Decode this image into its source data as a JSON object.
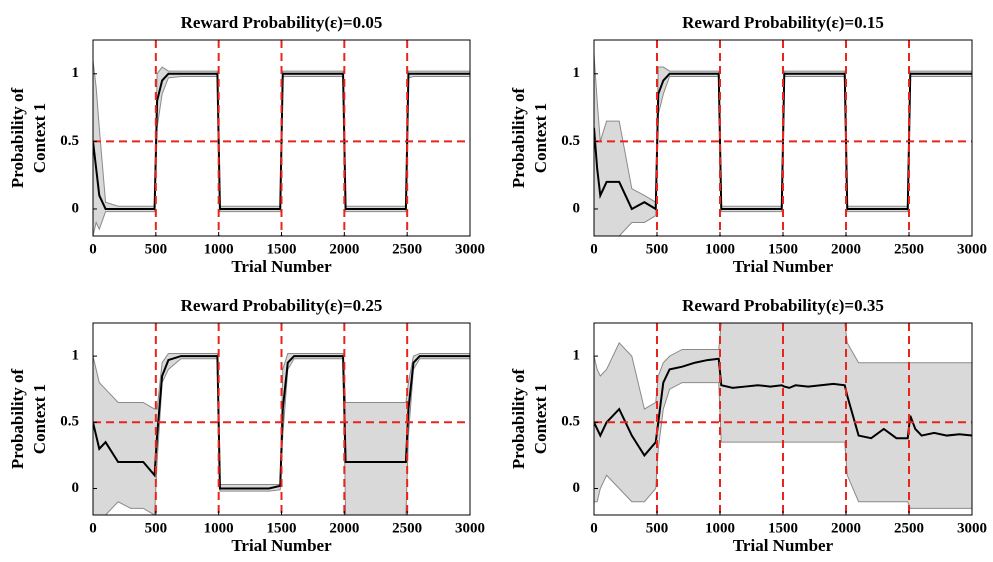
{
  "chart_data": [
    {
      "type": "line",
      "title": "Reward Probability(ε)=0.05",
      "xlabel": "Trial Number",
      "ylabel": [
        "Probability of",
        "Context 1"
      ],
      "x": [
        0,
        25,
        50,
        100,
        200,
        300,
        400,
        490,
        510,
        550,
        600,
        700,
        800,
        900,
        990,
        1010,
        1100,
        1200,
        1300,
        1400,
        1490,
        1510,
        1550,
        1600,
        1700,
        1800,
        1900,
        1990,
        2010,
        2100,
        2200,
        2300,
        2400,
        2490,
        2510,
        2550,
        2600,
        2700,
        2800,
        2900,
        3000
      ],
      "series": [
        {
          "color": "#000000",
          "values": [
            0.5,
            0.3,
            0.1,
            0,
            0,
            0,
            0,
            0,
            0.8,
            0.95,
            1,
            1,
            1,
            1,
            1,
            0,
            0,
            0,
            0,
            0,
            0,
            1,
            1,
            1,
            1,
            1,
            1,
            1,
            0,
            0,
            0,
            0,
            0,
            0,
            1,
            1,
            1,
            1,
            1,
            1,
            1
          ]
        }
      ],
      "band": {
        "color": "#d9d9d9",
        "edge_color": "#8a8a8a",
        "lower": [
          -0.2,
          -0.1,
          -0.15,
          -0.02,
          -0.02,
          -0.02,
          -0.02,
          -0.02,
          0.6,
          0.85,
          0.97,
          0.98,
          0.98,
          0.98,
          0.98,
          -0.02,
          -0.02,
          -0.02,
          -0.02,
          -0.02,
          -0.02,
          0.98,
          0.98,
          0.98,
          0.98,
          0.98,
          0.98,
          0.98,
          -0.02,
          -0.02,
          -0.02,
          -0.02,
          -0.02,
          -0.02,
          0.97,
          0.98,
          0.98,
          0.98,
          0.98,
          0.98,
          0.98
        ],
        "upper": [
          1.1,
          0.9,
          0.6,
          0.05,
          0.02,
          0.02,
          0.02,
          0.02,
          1.0,
          1.05,
          1.02,
          1.02,
          1.02,
          1.02,
          1.02,
          0.02,
          0.02,
          0.02,
          0.02,
          0.02,
          0.02,
          1.02,
          1.02,
          1.02,
          1.02,
          1.02,
          1.02,
          1.02,
          0.02,
          0.02,
          0.02,
          0.02,
          0.02,
          0.02,
          1.02,
          1.02,
          1.02,
          1.02,
          1.02,
          1.02,
          1.02
        ]
      },
      "xlim": [
        0,
        3000
      ],
      "ylim": [
        -0.2,
        1.25
      ],
      "xticks": [
        0,
        500,
        1000,
        1500,
        2000,
        2500,
        3000
      ],
      "yticks": [
        0,
        0.5,
        1
      ],
      "vlines": [
        500,
        1000,
        1500,
        2000,
        2500
      ],
      "hlines": [
        0.5
      ],
      "ref_color": "#e8241c"
    },
    {
      "type": "line",
      "title": "Reward Probability(ε)=0.15",
      "xlabel": "Trial Number",
      "ylabel": [
        "Probability of",
        "Context 1"
      ],
      "x": [
        0,
        25,
        50,
        100,
        200,
        300,
        400,
        490,
        510,
        550,
        600,
        700,
        800,
        900,
        990,
        1010,
        1100,
        1200,
        1300,
        1400,
        1490,
        1510,
        1550,
        1600,
        1700,
        1800,
        1900,
        1990,
        2010,
        2100,
        2200,
        2300,
        2400,
        2490,
        2510,
        2550,
        2600,
        2700,
        2800,
        2900,
        3000
      ],
      "series": [
        {
          "color": "#000000",
          "values": [
            0.6,
            0.3,
            0.1,
            0.2,
            0.2,
            0,
            0.05,
            0,
            0.85,
            0.95,
            1,
            1,
            1,
            1,
            1,
            0,
            0,
            0,
            0,
            0,
            0,
            1,
            1,
            1,
            1,
            1,
            1,
            1,
            0,
            0,
            0,
            0,
            0,
            0,
            1,
            1,
            1,
            1,
            1,
            1,
            1
          ]
        }
      ],
      "band": {
        "color": "#d9d9d9",
        "edge_color": "#8a8a8a",
        "lower": [
          -0.2,
          -0.2,
          -0.2,
          -0.2,
          -0.2,
          -0.1,
          -0.1,
          -0.05,
          0.7,
          0.85,
          0.98,
          0.98,
          0.98,
          0.98,
          0.98,
          -0.02,
          -0.02,
          -0.02,
          -0.02,
          -0.02,
          -0.02,
          0.98,
          0.98,
          0.98,
          0.98,
          0.98,
          0.98,
          0.98,
          -0.02,
          -0.02,
          -0.02,
          -0.02,
          -0.02,
          -0.02,
          0.98,
          0.98,
          0.98,
          0.98,
          0.98,
          0.98,
          0.98
        ],
        "upper": [
          1.15,
          0.8,
          0.5,
          0.65,
          0.65,
          0.15,
          0.1,
          0.05,
          1.05,
          1.05,
          1.02,
          1.02,
          1.02,
          1.02,
          1.02,
          0.02,
          0.02,
          0.02,
          0.02,
          0.02,
          0.02,
          1.02,
          1.02,
          1.02,
          1.02,
          1.02,
          1.02,
          1.02,
          0.02,
          0.02,
          0.02,
          0.02,
          0.02,
          0.02,
          1.02,
          1.02,
          1.02,
          1.02,
          1.02,
          1.02,
          1.02
        ]
      },
      "xlim": [
        0,
        3000
      ],
      "ylim": [
        -0.2,
        1.25
      ],
      "xticks": [
        0,
        500,
        1000,
        1500,
        2000,
        2500,
        3000
      ],
      "yticks": [
        0,
        0.5,
        1
      ],
      "vlines": [
        500,
        1000,
        1500,
        2000,
        2500
      ],
      "hlines": [
        0.5
      ],
      "ref_color": "#e8241c"
    },
    {
      "type": "line",
      "title": "Reward Probability(ε)=0.25",
      "xlabel": "Trial Number",
      "ylabel": [
        "Probability of",
        "Context 1"
      ],
      "x": [
        0,
        25,
        50,
        100,
        200,
        300,
        400,
        490,
        510,
        550,
        600,
        700,
        800,
        900,
        990,
        1010,
        1100,
        1200,
        1300,
        1400,
        1490,
        1510,
        1550,
        1600,
        1700,
        1800,
        1900,
        1990,
        2010,
        2100,
        2200,
        2300,
        2400,
        2490,
        2510,
        2550,
        2600,
        2700,
        2800,
        2900,
        3000
      ],
      "series": [
        {
          "color": "#000000",
          "values": [
            0.5,
            0.4,
            0.3,
            0.35,
            0.2,
            0.2,
            0.2,
            0.1,
            0.4,
            0.85,
            0.97,
            1,
            1,
            1,
            1,
            0,
            0,
            0,
            0,
            0,
            0.02,
            0.6,
            0.95,
            1,
            1,
            1,
            1,
            1,
            0.2,
            0.2,
            0.2,
            0.2,
            0.2,
            0.2,
            0.6,
            0.95,
            1,
            1,
            1,
            1,
            1
          ]
        }
      ],
      "band": {
        "color": "#d9d9d9",
        "edge_color": "#8a8a8a",
        "lower": [
          -0.2,
          -0.2,
          -0.2,
          -0.2,
          -0.1,
          -0.15,
          -0.15,
          -0.2,
          0.2,
          0.8,
          0.9,
          0.98,
          0.98,
          0.98,
          0.98,
          -0.02,
          -0.02,
          -0.02,
          -0.02,
          -0.02,
          -0.01,
          0.4,
          0.9,
          0.98,
          0.98,
          0.98,
          0.98,
          0.98,
          -0.2,
          -0.2,
          -0.2,
          -0.2,
          -0.2,
          -0.2,
          0.4,
          0.9,
          0.98,
          0.98,
          0.98,
          0.98,
          0.98
        ],
        "upper": [
          1.0,
          0.9,
          0.8,
          0.75,
          0.65,
          0.65,
          0.65,
          0.6,
          0.6,
          0.95,
          1.02,
          1.02,
          1.02,
          1.02,
          1.02,
          0.03,
          0.03,
          0.03,
          0.03,
          0.03,
          0.03,
          0.9,
          1.02,
          1.02,
          1.02,
          1.02,
          1.02,
          1.02,
          0.65,
          0.65,
          0.65,
          0.65,
          0.65,
          0.65,
          0.8,
          1.0,
          1.02,
          1.02,
          1.02,
          1.02,
          1.02
        ]
      },
      "xlim": [
        0,
        3000
      ],
      "ylim": [
        -0.2,
        1.25
      ],
      "xticks": [
        0,
        500,
        1000,
        1500,
        2000,
        2500,
        3000
      ],
      "yticks": [
        0,
        0.5,
        1
      ],
      "vlines": [
        500,
        1000,
        1500,
        2000,
        2500
      ],
      "hlines": [
        0.5
      ],
      "ref_color": "#e8241c"
    },
    {
      "type": "line",
      "title": "Reward Probability(ε)=0.35",
      "xlabel": "Trial Number",
      "ylabel": [
        "Probability of",
        "Context 1"
      ],
      "x": [
        0,
        25,
        50,
        100,
        200,
        300,
        400,
        490,
        510,
        550,
        600,
        700,
        800,
        900,
        990,
        1010,
        1100,
        1200,
        1300,
        1400,
        1490,
        1510,
        1550,
        1600,
        1700,
        1800,
        1900,
        1990,
        2010,
        2100,
        2200,
        2300,
        2400,
        2490,
        2510,
        2550,
        2600,
        2700,
        2800,
        2900,
        3000
      ],
      "series": [
        {
          "color": "#000000",
          "values": [
            0.5,
            0.45,
            0.4,
            0.5,
            0.6,
            0.4,
            0.25,
            0.35,
            0.5,
            0.8,
            0.9,
            0.92,
            0.95,
            0.97,
            0.98,
            0.78,
            0.76,
            0.77,
            0.78,
            0.77,
            0.78,
            0.77,
            0.76,
            0.78,
            0.77,
            0.78,
            0.79,
            0.78,
            0.7,
            0.4,
            0.38,
            0.45,
            0.38,
            0.38,
            0.55,
            0.45,
            0.4,
            0.42,
            0.4,
            0.41,
            0.4
          ]
        }
      ],
      "band": {
        "color": "#d9d9d9",
        "edge_color": "#8a8a8a",
        "lower": [
          -0.1,
          -0.1,
          0,
          0.1,
          0,
          -0.1,
          -0.1,
          0,
          0.3,
          0.6,
          0.75,
          0.8,
          0.8,
          0.8,
          0.8,
          0.35,
          0.35,
          0.35,
          0.35,
          0.35,
          0.35,
          0.35,
          0.35,
          0.35,
          0.35,
          0.35,
          0.35,
          0.35,
          0.1,
          -0.1,
          -0.1,
          -0.1,
          -0.1,
          -0.1,
          -0.15,
          -0.15,
          -0.15,
          -0.15,
          -0.15,
          -0.15,
          -0.15
        ],
        "upper": [
          1.0,
          0.9,
          0.85,
          0.9,
          1.1,
          1.0,
          0.6,
          0.65,
          0.85,
          0.95,
          1.0,
          1.05,
          1.05,
          1.05,
          1.05,
          1.25,
          1.25,
          1.25,
          1.25,
          1.25,
          1.25,
          1.25,
          1.25,
          1.25,
          1.25,
          1.25,
          1.25,
          1.25,
          1.1,
          0.95,
          0.95,
          0.95,
          0.95,
          0.95,
          0.95,
          0.95,
          0.95,
          0.95,
          0.95,
          0.95,
          0.95
        ]
      },
      "xlim": [
        0,
        3000
      ],
      "ylim": [
        -0.2,
        1.25
      ],
      "xticks": [
        0,
        500,
        1000,
        1500,
        2000,
        2500,
        3000
      ],
      "yticks": [
        0,
        0.5,
        1
      ],
      "vlines": [
        500,
        1000,
        1500,
        2000,
        2500
      ],
      "hlines": [
        0.5
      ],
      "ref_color": "#e8241c"
    }
  ]
}
